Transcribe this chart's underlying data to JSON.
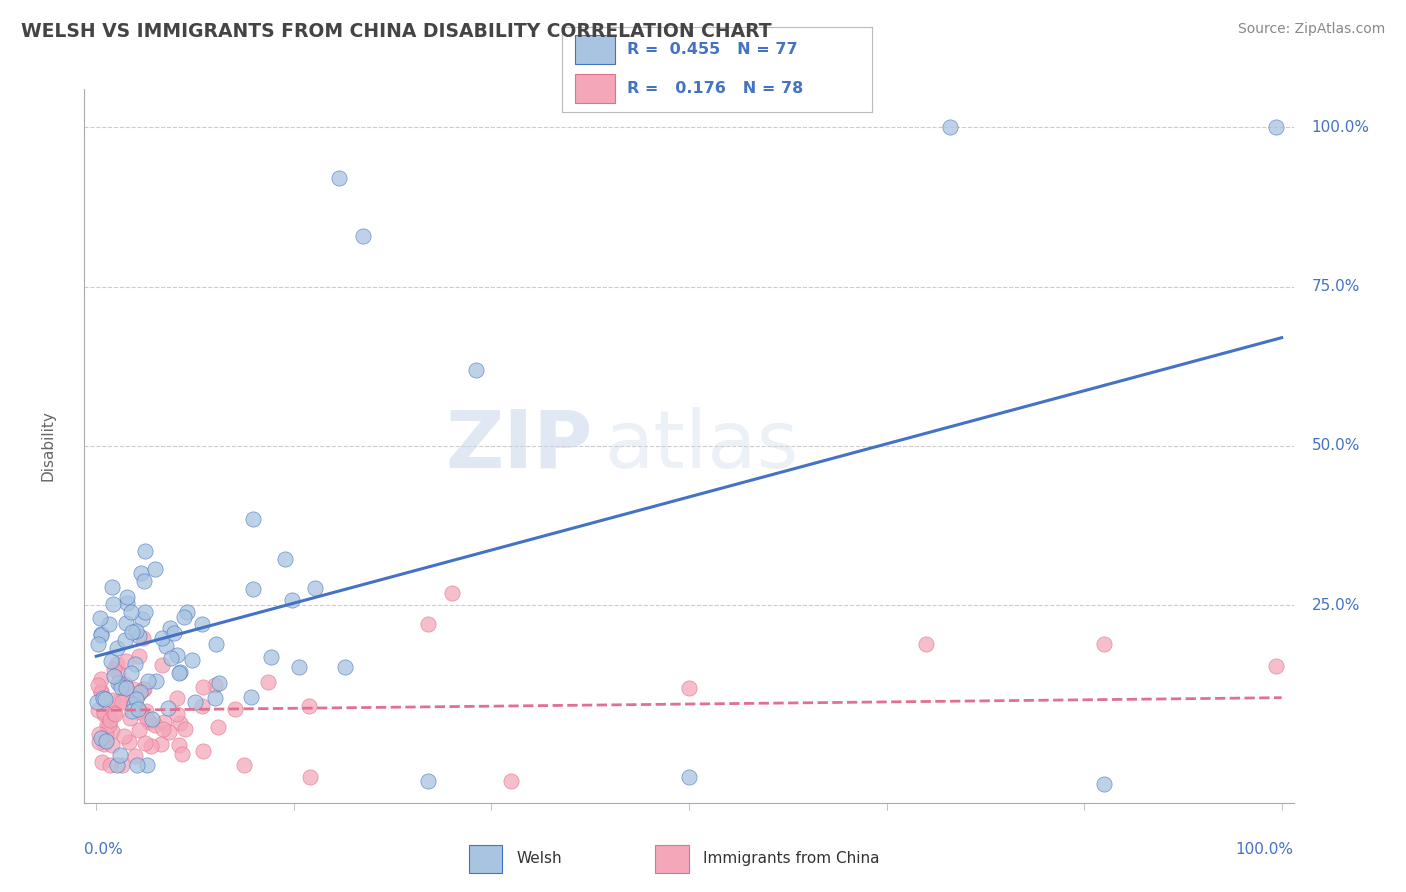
{
  "title": "WELSH VS IMMIGRANTS FROM CHINA DISABILITY CORRELATION CHART",
  "source": "Source: ZipAtlas.com",
  "ylabel": "Disability",
  "R_welsh": 0.455,
  "N_welsh": 77,
  "R_china": 0.176,
  "N_china": 78,
  "color_welsh": "#a8c4e0",
  "color_china": "#f4a7b9",
  "line_color_welsh": "#4472c4",
  "line_color_china": "#e07090",
  "background_color": "#ffffff",
  "watermark_zip": "ZIP",
  "watermark_atlas": "atlas",
  "title_color": "#444444",
  "axis_label_color": "#4472c4",
  "source_color": "#888888",
  "ylabel_color": "#666666",
  "grid_color": "#cccccc",
  "legend_text_color": "#4472c4"
}
